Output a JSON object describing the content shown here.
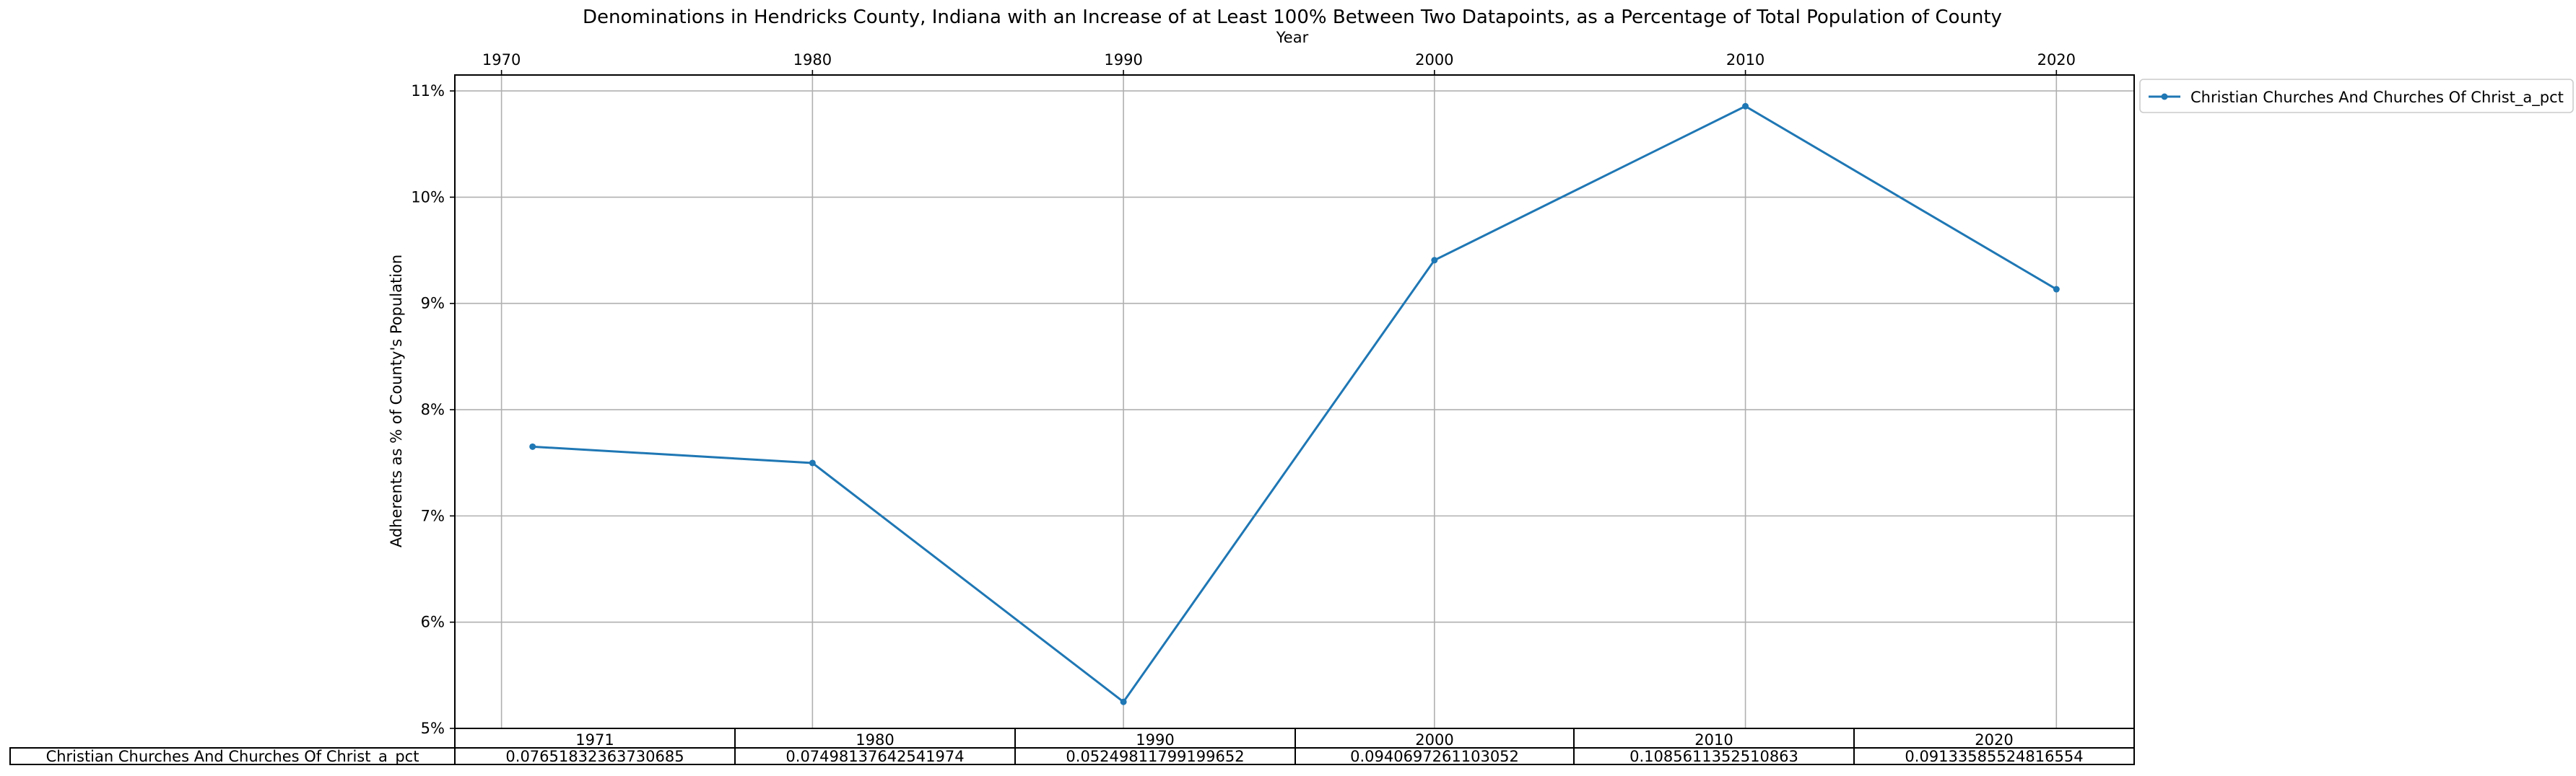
{
  "chart_data": {
    "type": "line",
    "title": "Denominations in Hendricks County, Indiana with an Increase of at Least 100% Between Two Datapoints, as a Percentage of Total Population of County",
    "xlabel": "Year",
    "ylabel": "Adherents as % of County's Population",
    "x": [
      1971,
      1980,
      1990,
      2000,
      2010,
      2020
    ],
    "x_ticks": [
      "1970",
      "1980",
      "1990",
      "2000",
      "2010",
      "2020"
    ],
    "y_ticks": [
      "5%",
      "6%",
      "7%",
      "8%",
      "9%",
      "10%",
      "11%"
    ],
    "xlim": [
      1968.5,
      2022.5
    ],
    "ylim": [
      0.05,
      0.1115
    ],
    "grid": true,
    "legend_position": "outside top-right",
    "color": "#1f77b4",
    "series": [
      {
        "name": "Christian Churches And Churches Of Christ_a_pct",
        "values": [
          0.07651832363730685,
          0.07498137642541974,
          0.05249811799199652,
          0.0940697261103052,
          0.1085611352510863,
          0.09133585524816554
        ]
      }
    ],
    "table": {
      "col_labels": [
        "1971",
        "1980",
        "1990",
        "2000",
        "2010",
        "2020"
      ],
      "row_label": "Christian Churches And Churches Of Christ_a_pct",
      "cells": [
        "0.07651832363730685",
        "0.07498137642541974",
        "0.05249811799199652",
        "0.0940697261103052",
        "0.1085611352510863",
        "0.09133585524816554"
      ]
    }
  }
}
